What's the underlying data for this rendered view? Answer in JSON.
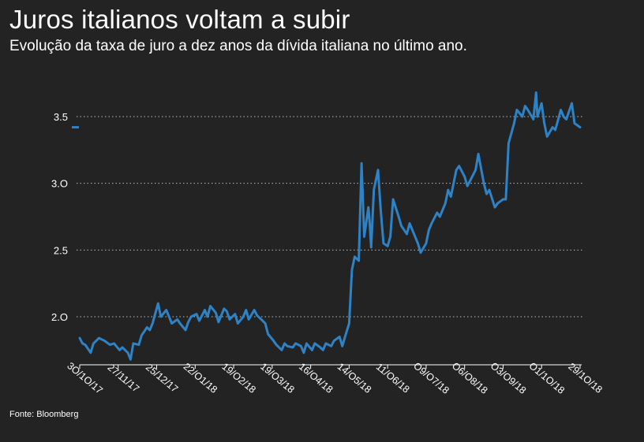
{
  "title": "Juros italianos voltam a subir",
  "subtitle": "Evolução da taxa de juro a dez anos da dívida italiana no último ano.",
  "source": "Fonte: Bloomberg",
  "colors": {
    "background": "#232323",
    "line": "#2e82c6",
    "text": "#ffffff",
    "grid": "#bbbbbb"
  },
  "chart_data": {
    "type": "line",
    "title": "Juros italianos voltam a subir",
    "subtitle": "Evolução da taxa de juro a dez anos da dívida italiana no último ano.",
    "xlabel": "",
    "ylabel": "",
    "x_range": [
      "2017-10-30",
      "2018-10-29"
    ],
    "ylim": [
      1.63,
      3.63
    ],
    "y_ticks": [
      {
        "value": 2.0,
        "label": "2.O"
      },
      {
        "value": 2.5,
        "label": "2.5"
      },
      {
        "value": 3.0,
        "label": "3.O"
      },
      {
        "value": 3.5,
        "label": "3.5"
      }
    ],
    "x_ticks": [
      {
        "date": "2017-10-30",
        "label": "3O/1O/17"
      },
      {
        "date": "2017-11-27",
        "label": "27/11/17"
      },
      {
        "date": "2017-12-25",
        "label": "25/12/17"
      },
      {
        "date": "2018-01-22",
        "label": "22/O1/18"
      },
      {
        "date": "2018-02-19",
        "label": "19/O2/18"
      },
      {
        "date": "2018-03-19",
        "label": "19/O3/18"
      },
      {
        "date": "2018-04-16",
        "label": "16/O4/18"
      },
      {
        "date": "2018-05-14",
        "label": "14/O5/18"
      },
      {
        "date": "2018-06-11",
        "label": "11/O6/18"
      },
      {
        "date": "2018-07-09",
        "label": "O9/O7/18"
      },
      {
        "date": "2018-08-06",
        "label": "O6/O8/18"
      },
      {
        "date": "2018-09-03",
        "label": "O3/O9/18"
      },
      {
        "date": "2018-10-01",
        "label": "O1/1O/18"
      },
      {
        "date": "2018-10-29",
        "label": "29/1O/18"
      }
    ],
    "grid": "horizontal dotted",
    "last_value_marker": 3.42,
    "series": [
      {
        "x": [
          "2017-10-30",
          "2017-11-01",
          "2017-11-03",
          "2017-11-07",
          "2017-11-09",
          "2017-11-13",
          "2017-11-15",
          "2017-11-17",
          "2017-11-21",
          "2017-11-24",
          "2017-11-28",
          "2017-11-30",
          "2017-12-04",
          "2017-12-06",
          "2017-12-08",
          "2017-12-12",
          "2017-12-14",
          "2017-12-18",
          "2017-12-20",
          "2017-12-22",
          "2017-12-26",
          "2017-12-28",
          "2018-01-01",
          "2018-01-03",
          "2018-01-05",
          "2018-01-09",
          "2018-01-11",
          "2018-01-15",
          "2018-01-17",
          "2018-01-19",
          "2018-01-23",
          "2018-01-25",
          "2018-01-29",
          "2018-01-31",
          "2018-02-02",
          "2018-02-06",
          "2018-02-08",
          "2018-02-12",
          "2018-02-14",
          "2018-02-16",
          "2018-02-20",
          "2018-02-22",
          "2018-02-26",
          "2018-02-28",
          "2018-03-02",
          "2018-03-06",
          "2018-03-08",
          "2018-03-12",
          "2018-03-14",
          "2018-03-16",
          "2018-03-20",
          "2018-03-22",
          "2018-03-26",
          "2018-03-28",
          "2018-03-30",
          "2018-04-03",
          "2018-04-05",
          "2018-04-09",
          "2018-04-11",
          "2018-04-13",
          "2018-04-17",
          "2018-04-19",
          "2018-04-23",
          "2018-04-25",
          "2018-04-27",
          "2018-05-01",
          "2018-05-03",
          "2018-05-07",
          "2018-05-09",
          "2018-05-11",
          "2018-05-14",
          "2018-05-16",
          "2018-05-18",
          "2018-05-21",
          "2018-05-23",
          "2018-05-25",
          "2018-05-28",
          "2018-05-29",
          "2018-05-30",
          "2018-06-01",
          "2018-06-04",
          "2018-06-06",
          "2018-06-08",
          "2018-06-11",
          "2018-06-13",
          "2018-06-15",
          "2018-06-19",
          "2018-06-21",
          "2018-06-25",
          "2018-06-27",
          "2018-06-29",
          "2018-07-03",
          "2018-07-05",
          "2018-07-09",
          "2018-07-11",
          "2018-07-13",
          "2018-07-17",
          "2018-07-19",
          "2018-07-23",
          "2018-07-25",
          "2018-07-27",
          "2018-07-31",
          "2018-08-02",
          "2018-08-06",
          "2018-08-08",
          "2018-08-10",
          "2018-08-14",
          "2018-08-16",
          "2018-08-20",
          "2018-08-22",
          "2018-08-24",
          "2018-08-28",
          "2018-08-30",
          "2018-09-03",
          "2018-09-05",
          "2018-09-07",
          "2018-09-11",
          "2018-09-13",
          "2018-09-17",
          "2018-09-19",
          "2018-09-21",
          "2018-09-25",
          "2018-09-27",
          "2018-09-28",
          "2018-10-01",
          "2018-10-03",
          "2018-10-05",
          "2018-10-09",
          "2018-10-11",
          "2018-10-15",
          "2018-10-17",
          "2018-10-19",
          "2018-10-23",
          "2018-10-25",
          "2018-10-29"
        ],
        "values": [
          1.84,
          1.8,
          1.79,
          1.73,
          1.8,
          1.84,
          1.83,
          1.82,
          1.79,
          1.8,
          1.75,
          1.77,
          1.73,
          1.68,
          1.8,
          1.79,
          1.86,
          1.92,
          1.9,
          1.95,
          2.1,
          2.0,
          2.05,
          2.0,
          1.95,
          1.98,
          1.95,
          1.9,
          1.96,
          2.0,
          2.02,
          1.97,
          2.05,
          2.0,
          2.08,
          2.03,
          1.96,
          2.06,
          2.04,
          1.98,
          2.02,
          1.95,
          2.0,
          2.05,
          1.98,
          2.05,
          2.01,
          1.97,
          1.95,
          1.87,
          1.82,
          1.79,
          1.75,
          1.8,
          1.78,
          1.77,
          1.8,
          1.78,
          1.73,
          1.8,
          1.75,
          1.8,
          1.77,
          1.75,
          1.8,
          1.78,
          1.82,
          1.85,
          1.78,
          1.85,
          1.95,
          2.35,
          2.45,
          2.42,
          3.15,
          2.6,
          2.82,
          2.7,
          2.52,
          2.95,
          3.1,
          2.8,
          2.55,
          2.53,
          2.6,
          2.88,
          2.75,
          2.68,
          2.62,
          2.7,
          2.65,
          2.55,
          2.48,
          2.55,
          2.65,
          2.7,
          2.78,
          2.75,
          2.85,
          2.95,
          2.9,
          3.1,
          3.13,
          3.05,
          2.98,
          3.02,
          3.1,
          3.22,
          3.0,
          2.92,
          2.95,
          2.82,
          2.85,
          2.88,
          2.88,
          3.3,
          3.45,
          3.55,
          3.5,
          3.58,
          3.55,
          3.48,
          3.68,
          3.5,
          3.6,
          3.45,
          3.35,
          3.42,
          3.4,
          3.55,
          3.5,
          3.48,
          3.6,
          3.45,
          3.42
        ]
      }
    ]
  }
}
